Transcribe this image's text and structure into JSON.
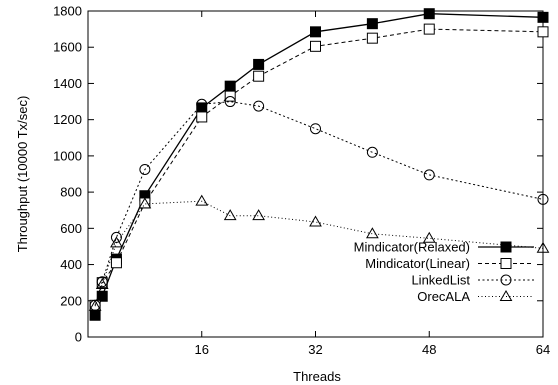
{
  "chart_data": {
    "type": "line",
    "title": "",
    "xlabel": "Threads",
    "ylabel": "Throughput (10000 Tx/sec)",
    "xlim": [
      0,
      64
    ],
    "ylim": [
      0,
      1800
    ],
    "xticks": [
      16,
      32,
      48,
      64
    ],
    "yticks": [
      0,
      200,
      400,
      600,
      800,
      1000,
      1200,
      1400,
      1600,
      1800
    ],
    "grid": false,
    "legend_position": "bottom-right",
    "series": [
      {
        "name": "Mindicator(Relaxed)",
        "marker": "filled-square",
        "dash": "solid",
        "x": [
          1,
          2,
          4,
          8,
          16,
          20,
          24,
          32,
          40,
          48,
          64
        ],
        "y": [
          120,
          225,
          430,
          780,
          1265,
          1385,
          1505,
          1685,
          1730,
          1785,
          1765
        ]
      },
      {
        "name": "Mindicator(Linear)",
        "marker": "open-square",
        "dash": "dashed",
        "x": [
          1,
          2,
          4,
          8,
          16,
          20,
          24,
          32,
          40,
          48,
          64
        ],
        "y": [
          175,
          300,
          410,
          740,
          1215,
          1330,
          1440,
          1605,
          1650,
          1700,
          1685
        ]
      },
      {
        "name": "LinkedList",
        "marker": "open-circle",
        "dash": "dotted",
        "x": [
          1,
          2,
          4,
          8,
          16,
          20,
          24,
          32,
          40,
          48,
          64
        ],
        "y": [
          175,
          305,
          550,
          925,
          1285,
          1300,
          1275,
          1150,
          1020,
          895,
          760
        ]
      },
      {
        "name": "OrecALA",
        "marker": "open-triangle",
        "dash": "fine-dotted",
        "x": [
          1,
          2,
          4,
          8,
          16,
          20,
          24,
          32,
          40,
          48,
          64
        ],
        "y": [
          170,
          290,
          520,
          735,
          750,
          670,
          670,
          635,
          570,
          545,
          490
        ]
      }
    ]
  }
}
